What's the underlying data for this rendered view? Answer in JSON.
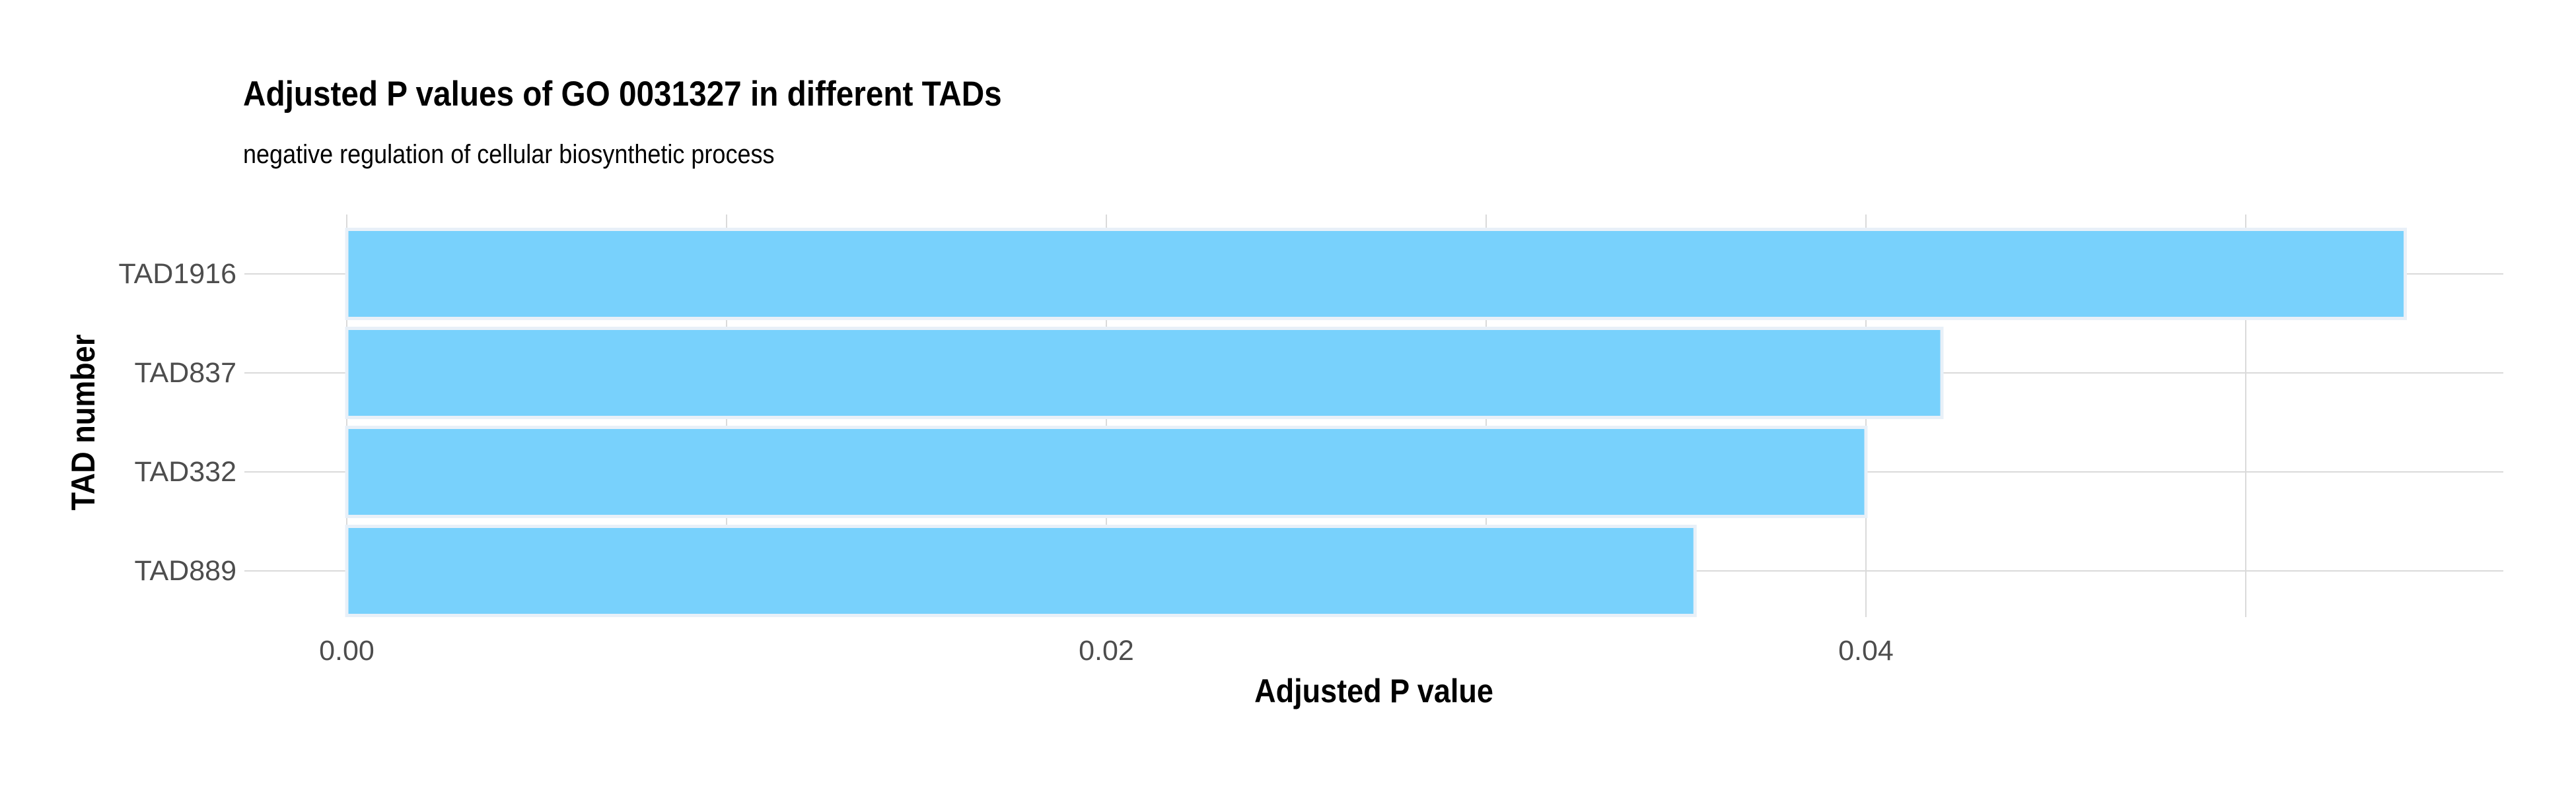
{
  "chart_data": {
    "type": "bar",
    "orientation": "horizontal",
    "title": "Adjusted P values of GO 0031327 in different TADs",
    "subtitle": "negative regulation of cellular biosynthetic process",
    "xlabel": "Adjusted P value",
    "ylabel": "TAD number",
    "categories": [
      "TAD1916",
      "TAD837",
      "TAD332",
      "TAD889"
    ],
    "values": [
      0.0542,
      0.042,
      0.04,
      0.0355
    ],
    "x_ticks": [
      "0.00",
      "0.02",
      "0.04"
    ],
    "x_tick_values": [
      0,
      0.02,
      0.04
    ],
    "xlim": [
      0,
      0.057
    ],
    "grid": true,
    "legend": "none",
    "bar_color": "#75D0FC",
    "bar_border_color": "#E8F0F8",
    "grid_color": "#DADADA",
    "text_color": "#000000",
    "tick_label_color": "#4D4D4D"
  }
}
